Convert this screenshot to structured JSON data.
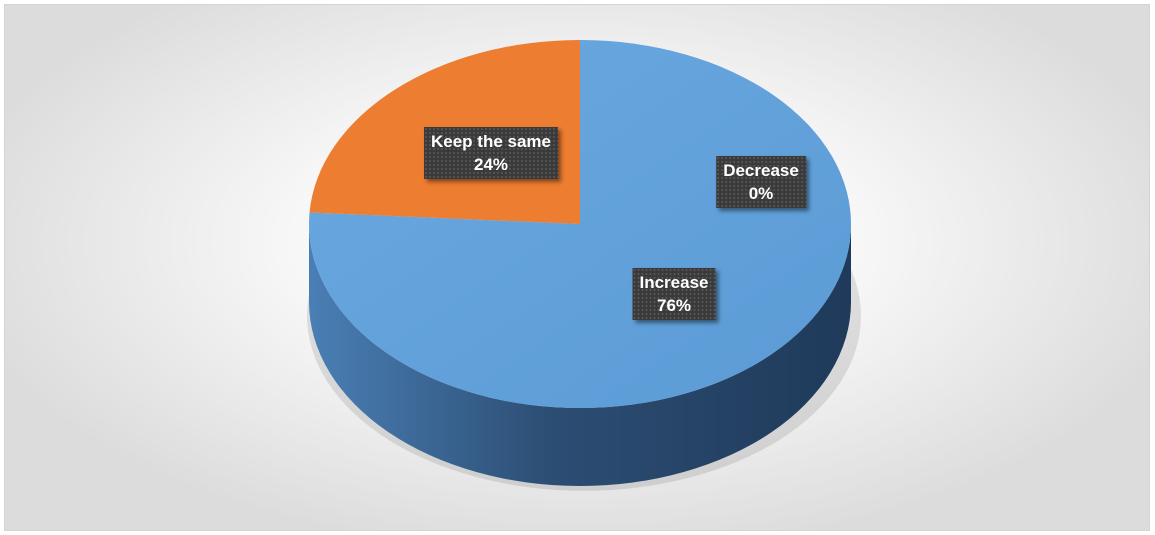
{
  "chart_data": {
    "type": "pie",
    "title": "",
    "slices": [
      {
        "label": "Decrease",
        "value": 0,
        "pct_label": "0%",
        "color": "#5B9BD5"
      },
      {
        "label": "Increase",
        "value": 76,
        "pct_label": "76%",
        "color": "#5B9BD5"
      },
      {
        "label": "Keep the same",
        "value": 24,
        "pct_label": "24%",
        "color": "#ED7D31"
      }
    ],
    "style": "3d",
    "legend": "none"
  }
}
